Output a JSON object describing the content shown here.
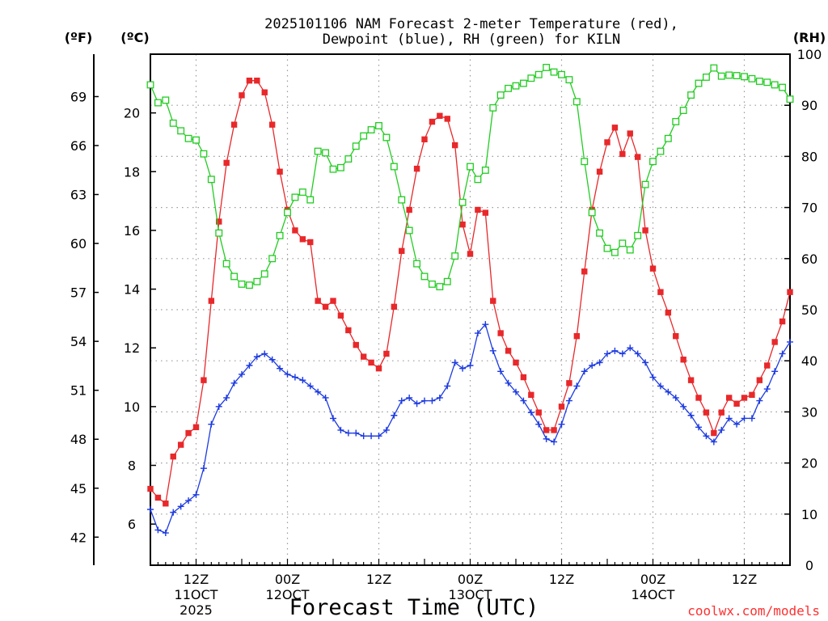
{
  "chart_data": {
    "type": "line",
    "title": "2025101106 NAM Forecast 2-meter Temperature (red), Dewpoint (blue), RH (green) for KILN",
    "title_lines": [
      "2025101106 NAM Forecast 2-meter Temperature (red),",
      "Dewpoint (blue), RH (green) for KILN"
    ],
    "xlabel": "Forecast Time (UTC)",
    "credit": "coolwx.com/models",
    "units": {
      "fahrenheit": "(ºF)",
      "celsius": "(ºC)",
      "rh": "(RH)"
    },
    "x_unit": "forecast hour",
    "xlim": [
      0,
      84
    ],
    "ylim_celsius": [
      4.6,
      22
    ],
    "ylim_rh": [
      0,
      100
    ],
    "celsius_ticks": [
      "6",
      "8",
      "10",
      "12",
      "14",
      "16",
      "18",
      "20"
    ],
    "fahrenheit_ticks": [
      "42",
      "45",
      "48",
      "51",
      "54",
      "57",
      "60",
      "63",
      "66",
      "69"
    ],
    "rh_ticks": [
      "0",
      "10",
      "20",
      "30",
      "40",
      "50",
      "60",
      "70",
      "80",
      "90",
      "100"
    ],
    "x_ticks": [
      {
        "hour": 6,
        "lines": [
          "12Z",
          "11OCT",
          "2025"
        ]
      },
      {
        "hour": 18,
        "lines": [
          "00Z",
          "12OCT"
        ]
      },
      {
        "hour": 30,
        "lines": [
          "12Z"
        ]
      },
      {
        "hour": 42,
        "lines": [
          "00Z",
          "13OCT"
        ]
      },
      {
        "hour": 54,
        "lines": [
          "12Z"
        ]
      },
      {
        "hour": 66,
        "lines": [
          "00Z",
          "14OCT"
        ]
      },
      {
        "hour": 78,
        "lines": [
          "12Z"
        ]
      }
    ],
    "series": [
      {
        "name": "2-meter Temperature",
        "unit": "C",
        "color": "#e8282a",
        "marker": "filled-square",
        "x": [
          0,
          1,
          2,
          3,
          4,
          5,
          6,
          7,
          8,
          9,
          10,
          11,
          12,
          13,
          14,
          15,
          16,
          17,
          18,
          19,
          20,
          21,
          22,
          23,
          24,
          25,
          26,
          27,
          28,
          29,
          30,
          31,
          32,
          33,
          34,
          35,
          36,
          37,
          38,
          39,
          40,
          41,
          42,
          43,
          44,
          45,
          46,
          47,
          48,
          49,
          50,
          51,
          52,
          53,
          54,
          55,
          56,
          57,
          58,
          59,
          60,
          61,
          62,
          63,
          64,
          65,
          66,
          67,
          68,
          69,
          70,
          71,
          72,
          73,
          74,
          75,
          76,
          77,
          78,
          79,
          80,
          81,
          82,
          83,
          84
        ],
        "values": [
          7.2,
          6.9,
          6.7,
          8.3,
          8.7,
          9.1,
          9.3,
          10.9,
          13.6,
          16.3,
          18.3,
          19.6,
          20.6,
          21.1,
          21.1,
          20.7,
          19.6,
          18.0,
          16.7,
          16.0,
          15.7,
          15.6,
          13.6,
          13.4,
          13.6,
          13.1,
          12.6,
          12.1,
          11.7,
          11.5,
          11.3,
          11.8,
          13.4,
          15.3,
          16.7,
          18.1,
          19.1,
          19.7,
          19.9,
          19.8,
          18.9,
          16.2,
          15.2,
          16.7,
          16.6,
          13.6,
          12.5,
          11.9,
          11.5,
          11.0,
          10.4,
          9.8,
          9.2,
          9.2,
          10.0,
          10.8,
          12.4,
          14.6,
          16.7,
          18.0,
          19.0,
          19.5,
          18.6,
          19.3,
          18.5,
          16.0,
          14.7,
          13.9,
          13.2,
          12.4,
          11.6,
          10.9,
          10.3,
          9.8,
          9.1,
          9.8,
          10.3,
          10.1,
          10.3,
          10.4,
          10.9,
          11.4,
          12.2,
          12.9,
          13.9
        ]
      },
      {
        "name": "Dewpoint",
        "unit": "C",
        "color": "#1c3ae0",
        "marker": "plus",
        "x": [
          0,
          1,
          2,
          3,
          4,
          5,
          6,
          7,
          8,
          9,
          10,
          11,
          12,
          13,
          14,
          15,
          16,
          17,
          18,
          19,
          20,
          21,
          22,
          23,
          24,
          25,
          26,
          27,
          28,
          29,
          30,
          31,
          32,
          33,
          34,
          35,
          36,
          37,
          38,
          39,
          40,
          41,
          42,
          43,
          44,
          45,
          46,
          47,
          48,
          49,
          50,
          51,
          52,
          53,
          54,
          55,
          56,
          57,
          58,
          59,
          60,
          61,
          62,
          63,
          64,
          65,
          66,
          67,
          68,
          69,
          70,
          71,
          72,
          73,
          74,
          75,
          76,
          77,
          78,
          79,
          80,
          81,
          82,
          83,
          84
        ],
        "values": [
          6.5,
          5.8,
          5.7,
          6.4,
          6.6,
          6.8,
          7.0,
          7.9,
          9.4,
          10.0,
          10.3,
          10.8,
          11.1,
          11.4,
          11.7,
          11.8,
          11.6,
          11.3,
          11.1,
          11.0,
          10.9,
          10.7,
          10.5,
          10.3,
          9.6,
          9.2,
          9.1,
          9.1,
          9.0,
          9.0,
          9.0,
          9.2,
          9.7,
          10.2,
          10.3,
          10.1,
          10.2,
          10.2,
          10.3,
          10.7,
          11.5,
          11.3,
          11.4,
          12.5,
          12.8,
          11.9,
          11.2,
          10.8,
          10.5,
          10.2,
          9.8,
          9.4,
          8.9,
          8.8,
          9.4,
          10.2,
          10.7,
          11.2,
          11.4,
          11.5,
          11.8,
          11.9,
          11.8,
          12.0,
          11.8,
          11.5,
          11.0,
          10.7,
          10.5,
          10.3,
          10.0,
          9.7,
          9.3,
          9.0,
          8.8,
          9.2,
          9.6,
          9.4,
          9.6,
          9.6,
          10.2,
          10.6,
          11.2,
          11.8,
          12.2
        ]
      },
      {
        "name": "RH",
        "unit": "%",
        "color": "#22cc22",
        "marker": "open-square",
        "x": [
          0,
          1,
          2,
          3,
          4,
          5,
          6,
          7,
          8,
          9,
          10,
          11,
          12,
          13,
          14,
          15,
          16,
          17,
          18,
          19,
          20,
          21,
          22,
          23,
          24,
          25,
          26,
          27,
          28,
          29,
          30,
          31,
          32,
          33,
          34,
          35,
          36,
          37,
          38,
          39,
          40,
          41,
          42,
          43,
          44,
          45,
          46,
          47,
          48,
          49,
          50,
          51,
          52,
          53,
          54,
          55,
          56,
          57,
          58,
          59,
          60,
          61,
          62,
          63,
          64,
          65,
          66,
          67,
          68,
          69,
          70,
          71,
          72,
          73,
          74,
          75,
          76,
          77,
          78,
          79,
          80,
          81,
          82,
          83,
          84
        ],
        "values": [
          94,
          90.5,
          91,
          86.5,
          85,
          83.5,
          83.2,
          80.5,
          75.5,
          65,
          59,
          56.5,
          55,
          54.8,
          55.5,
          57,
          60,
          64.5,
          69,
          72,
          73,
          71.5,
          81,
          80.7,
          77.5,
          77.8,
          79.5,
          82,
          84,
          85.2,
          86,
          83.7,
          78,
          71.5,
          65.5,
          59,
          56.5,
          55,
          54.5,
          55.5,
          60.5,
          71,
          78,
          75.5,
          77.3,
          89.5,
          92,
          93.3,
          93.8,
          94.3,
          95.3,
          96,
          97.4,
          96.5,
          96,
          95,
          90.7,
          79,
          69,
          65,
          62,
          61.2,
          63,
          61.7,
          64.5,
          74.5,
          79,
          81,
          83.5,
          86.8,
          89,
          92,
          94.3,
          95.5,
          97.3,
          95.7,
          95.9,
          95.8,
          95.6,
          95.2,
          94.7,
          94.5,
          94,
          93.5,
          91.2
        ]
      }
    ]
  }
}
